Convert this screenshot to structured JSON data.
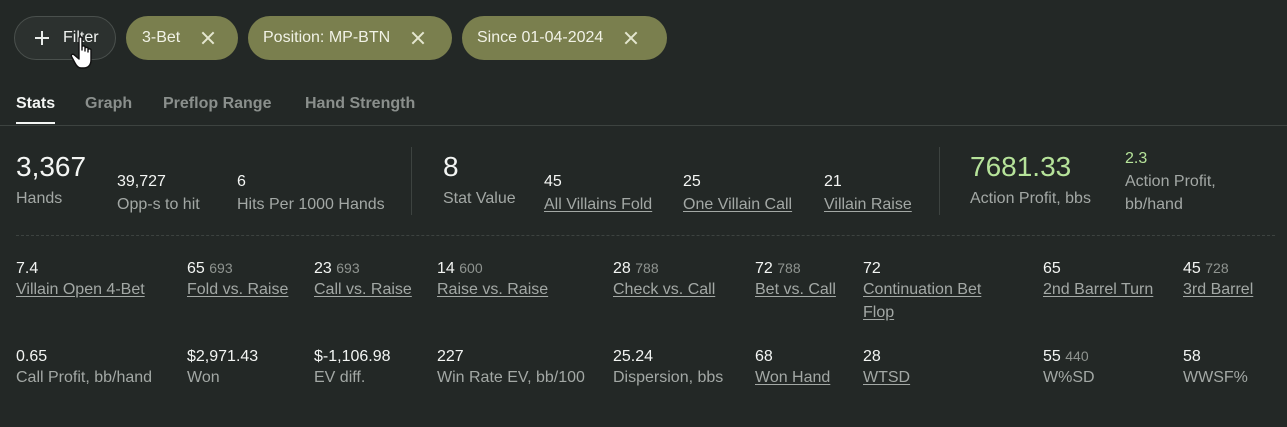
{
  "filters": {
    "add_label": "Filter",
    "chips": [
      {
        "label": "3-Bet"
      },
      {
        "label": "Position: MP-BTN"
      },
      {
        "label": "Since 01-04-2024"
      }
    ]
  },
  "tabs": [
    {
      "label": "Stats",
      "active": true
    },
    {
      "label": "Graph",
      "active": false
    },
    {
      "label": "Preflop Range",
      "active": false
    },
    {
      "label": "Hand Strength",
      "active": false
    }
  ],
  "summary": {
    "hands": {
      "value": "3,367",
      "label": "Hands"
    },
    "opps": {
      "value": "39,727",
      "label": "Opp-s to hit"
    },
    "hits": {
      "value": "6",
      "label": "Hits Per 1000 Hands"
    },
    "stat_value": {
      "value": "8",
      "label": "Stat Value"
    },
    "all_villains_fold": {
      "value": "45",
      "label": "All Villains Fold"
    },
    "one_villain_call": {
      "value": "25",
      "label": "One Villain Call"
    },
    "villain_raise": {
      "value": "21",
      "label": "Villain Raise"
    },
    "action_profit_bbs": {
      "value": "7681.33",
      "label": "Action Profit, bbs"
    },
    "action_profit_hand": {
      "value": "2.3",
      "label_line1": "Action Profit,",
      "label_line2": "bb/hand"
    }
  },
  "stats_row1": [
    {
      "value": "7.4",
      "sub": "",
      "label": "Villain Open 4-Bet"
    },
    {
      "value": "65",
      "sub": "693",
      "label": "Fold vs. Raise"
    },
    {
      "value": "23",
      "sub": "693",
      "label": "Call vs. Raise"
    },
    {
      "value": "14",
      "sub": "600",
      "label": "Raise vs. Raise"
    },
    {
      "value": "28",
      "sub": "788",
      "label": "Check vs. Call"
    },
    {
      "value": "72",
      "sub": "788",
      "label": "Bet vs. Call"
    },
    {
      "value": "72",
      "sub": "",
      "label_line1": "Continuation Bet",
      "label_line2": "Flop"
    },
    {
      "value": "65",
      "sub": "",
      "label": "2nd Barrel Turn"
    },
    {
      "value": "45",
      "sub": "728",
      "label": "3rd Barrel"
    }
  ],
  "stats_row2": [
    {
      "value": "0.65",
      "label": "Call Profit, bb/hand"
    },
    {
      "value": "$2,971.43",
      "label": "Won"
    },
    {
      "value": "$-1,106.98",
      "label": "EV diff."
    },
    {
      "value": "227",
      "label": "Win Rate EV, bb/100"
    },
    {
      "value": "25.24",
      "label": "Dispersion, bbs"
    },
    {
      "value": "68",
      "label": "Won Hand"
    },
    {
      "value": "28",
      "label": "WTSD"
    },
    {
      "value": "55",
      "sub": "440",
      "label": "W%SD"
    },
    {
      "value": "58",
      "label": "WWSF%"
    }
  ],
  "colors": {
    "positive": "#b6e39a",
    "negative": "#ec8270",
    "chip": "#7a7f4e"
  }
}
